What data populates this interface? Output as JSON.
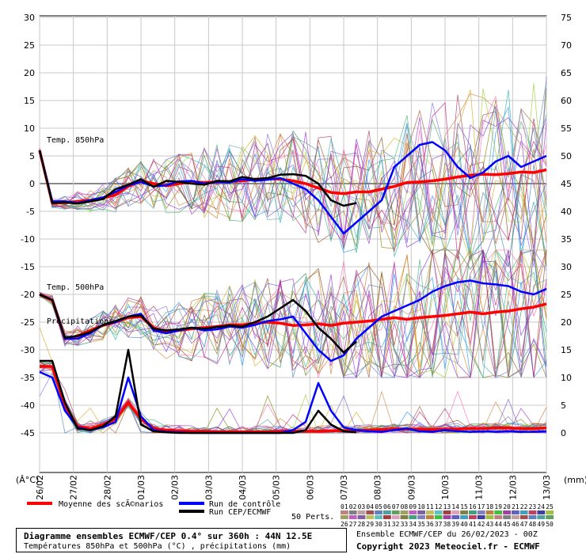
{
  "footer": {
    "title": "Diagramme ensembles ECMWF/CEP 0.4° sur 360h : 44N 12.5E",
    "subtitle": "Températures 850hPa et 500hPa (°C) , précipitations (mm)",
    "run_info": "Ensemble ECMWF/CEP du 26/02/2023 - 00Z",
    "copyright": "Copyright 2023 Meteociel.fr - ECMWF"
  },
  "legend": {
    "mean_label": "Moyenne des scÃ©narios",
    "control_label": "Run de contrôle",
    "oper_label": "Run CEP/ECMWF",
    "perts_label": "50 Perts.",
    "perts_row1": [
      "01",
      "02",
      "03",
      "04",
      "05",
      "06",
      "07",
      "08",
      "09",
      "10",
      "11",
      "12",
      "13",
      "14",
      "15",
      "16",
      "17",
      "18",
      "19",
      "20",
      "21",
      "22",
      "23",
      "24",
      "25"
    ],
    "perts_row2": [
      "26",
      "27",
      "28",
      "29",
      "30",
      "31",
      "32",
      "33",
      "34",
      "35",
      "36",
      "37",
      "38",
      "39",
      "40",
      "41",
      "42",
      "43",
      "44",
      "45",
      "46",
      "47",
      "48",
      "49",
      "50"
    ]
  },
  "chart_data": {
    "type": "line",
    "left_axis": {
      "label": "(Â°C)",
      "ticks": [
        30,
        25,
        20,
        15,
        10,
        5,
        0,
        -5,
        -10,
        -15,
        -20,
        -25,
        -30,
        -35,
        -40,
        -45
      ],
      "ylim": [
        -45,
        30
      ]
    },
    "right_axis": {
      "label": "(mm)",
      "ticks": [
        75,
        70,
        65,
        60,
        55,
        50,
        45,
        40,
        35,
        30,
        25,
        20,
        15,
        10,
        5,
        0
      ],
      "ylim": [
        0,
        75
      ]
    },
    "x_ticks": [
      "26/02",
      "27/02",
      "28/02",
      "01/03",
      "02/03",
      "03/03",
      "04/03",
      "05/03",
      "06/03",
      "07/03",
      "08/03",
      "09/03",
      "10/03",
      "11/03",
      "12/03",
      "13/03"
    ],
    "panel_labels": {
      "t850": "Temp. 850hPa",
      "t500": "Temp. 500hPa",
      "precip": "Précipitations"
    },
    "grid": true,
    "series": [
      {
        "name": "Moyenne des scÃ©narios",
        "panel": "t850",
        "color": "#ff0000",
        "values": [
          6,
          -3.5,
          -3.5,
          -3.2,
          -3,
          -2.6,
          -2,
          -0.5,
          0.5,
          0,
          -0.4,
          0,
          0.3,
          0.2,
          0.3,
          0.4,
          0.5,
          0.8,
          0.9,
          0.8,
          0.5,
          0,
          -0.8,
          -1.6,
          -1.8,
          -1.5,
          -1.5,
          -1,
          -0.5,
          0.2,
          0.3,
          0.5,
          0.8,
          1.2,
          1.5,
          1.7,
          1.6,
          1.8,
          2.1,
          2,
          2.5
        ]
      },
      {
        "name": "Run de contrôle",
        "panel": "t850",
        "color": "#0000ff",
        "values": [
          6,
          -3.2,
          -3.2,
          -3.5,
          -3,
          -2.5,
          -1.5,
          -0.3,
          0.3,
          -0.5,
          -0.3,
          0.4,
          0.5,
          0,
          0.3,
          0.2,
          0.8,
          0.5,
          0.7,
          1,
          0,
          -1,
          -3,
          -6,
          -9,
          -7,
          -5,
          -3,
          3,
          5,
          7,
          7.5,
          6,
          3,
          1,
          2,
          4,
          5,
          3,
          4,
          5
        ]
      },
      {
        "name": "Run CEP/ECMWF",
        "panel": "t850",
        "color": "#000000",
        "values": [
          6,
          -3.5,
          -3.4,
          -3.6,
          -3.2,
          -2.8,
          -1,
          -0.2,
          0.8,
          -0.6,
          0.5,
          0.3,
          0,
          -0.2,
          0.5,
          0.4,
          1.2,
          0.8,
          1,
          1.6,
          1.7,
          1.4,
          0,
          -3,
          -4,
          -3.5
        ]
      },
      {
        "name": "Moyenne des scÃ©narios",
        "panel": "t500",
        "color": "#ff0000",
        "values": [
          -20,
          -21,
          -28,
          -27.5,
          -26.5,
          -25.6,
          -25,
          -24.2,
          -24,
          -26,
          -26.8,
          -26.5,
          -26.2,
          -26,
          -25.8,
          -25.5,
          -25.5,
          -25.2,
          -25,
          -25.2,
          -25.6,
          -25.5,
          -25.3,
          -25.6,
          -25.2,
          -25,
          -24.8,
          -24.5,
          -24.2,
          -24.5,
          -24.2,
          -24,
          -23.8,
          -23.5,
          -23.2,
          -23.5,
          -23.2,
          -23,
          -22.6,
          -22.3,
          -21.7
        ]
      },
      {
        "name": "Run de contrôle",
        "panel": "t500",
        "color": "#0000ff",
        "values": [
          -20,
          -21,
          -28,
          -28,
          -27,
          -25.5,
          -25,
          -24,
          -23.5,
          -26.5,
          -27,
          -26.5,
          -26,
          -26.5,
          -26.3,
          -25.8,
          -26,
          -25.5,
          -24.8,
          -24.5,
          -24,
          -27,
          -30,
          -32,
          -31,
          -28,
          -26,
          -24,
          -23,
          -22,
          -21,
          -19.5,
          -18.5,
          -17.8,
          -17.5,
          -18,
          -18.2,
          -18.5,
          -19.5,
          -20,
          -19
        ]
      },
      {
        "name": "Run CEP/ECMWF",
        "panel": "t500",
        "color": "#000000",
        "values": [
          -20,
          -21,
          -27.8,
          -27.5,
          -26.8,
          -25.5,
          -24.8,
          -24,
          -23.8,
          -26.2,
          -26.5,
          -26.3,
          -26,
          -26.2,
          -25.9,
          -25.6,
          -25.8,
          -25,
          -24,
          -22.5,
          -21,
          -23,
          -26,
          -28,
          -30.5,
          -28.5
        ]
      },
      {
        "name": "Moyenne des scÃ©narios",
        "panel": "precip",
        "color": "#ff0000",
        "values": [
          12,
          12,
          5,
          1.2,
          0.8,
          1.5,
          2.5,
          5.5,
          2.5,
          0.8,
          0.5,
          0.4,
          0.3,
          0.3,
          0.2,
          0.2,
          0.2,
          0.2,
          0.2,
          0.3,
          0.3,
          0.3,
          0.3,
          0.4,
          0.4,
          0.5,
          0.5,
          0.6,
          0.7,
          0.7,
          0.7,
          0.6,
          0.7,
          0.7,
          0.8,
          0.8,
          0.9,
          0.9,
          0.8,
          0.8,
          0.9
        ]
      },
      {
        "name": "Run de contrôle",
        "panel": "precip",
        "color": "#0000ff",
        "values": [
          11,
          10,
          4,
          1,
          0.5,
          1,
          2,
          10,
          3,
          0.5,
          0.2,
          0.1,
          0,
          0,
          0,
          0,
          0,
          0,
          0,
          0,
          0.5,
          2,
          9,
          4,
          1,
          0.5,
          0.3,
          0.2,
          0.5,
          0.8,
          0.3,
          0.2,
          0.5,
          0.3,
          0.2,
          0.3,
          0.2,
          0.3,
          0.2,
          0.2,
          0.3
        ]
      },
      {
        "name": "Run CEP/ECMWF",
        "panel": "precip",
        "color": "#000000",
        "values": [
          13,
          13,
          5.5,
          0.8,
          0.5,
          1.2,
          3,
          15,
          1.5,
          0.3,
          0.1,
          0,
          0,
          0,
          0,
          0,
          0,
          0,
          0,
          0,
          0,
          0.5,
          4,
          1.5,
          0.3,
          0.1
        ]
      }
    ]
  }
}
